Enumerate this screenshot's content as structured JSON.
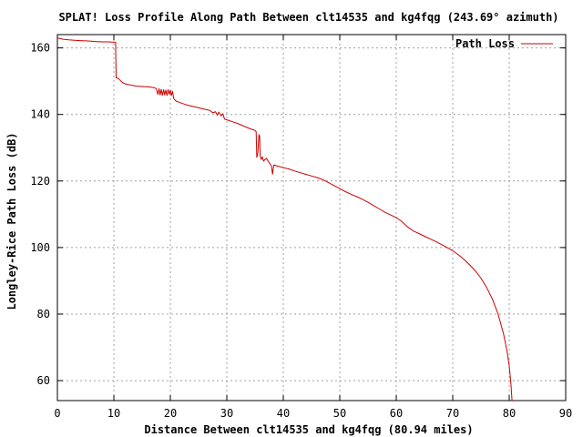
{
  "chart_data": {
    "type": "line",
    "title": "SPLAT! Loss Profile Along Path Between clt14535 and kg4fqg (243.69° azimuth)",
    "xlabel": "Distance Between clt14535 and kg4fqg (80.94 miles)",
    "ylabel": "Longley-Rice Path Loss (dB)",
    "xlim": [
      0,
      90
    ],
    "ylim": [
      54,
      164
    ],
    "xticks": [
      "0",
      "10",
      "20",
      "30",
      "40",
      "50",
      "60",
      "70",
      "80",
      "90"
    ],
    "yticks": [
      "60",
      "80",
      "100",
      "120",
      "140",
      "160"
    ],
    "grid": true,
    "legend": "top-right",
    "series": [
      {
        "name": "Path Loss",
        "color": "#cc0000",
        "points": [
          [
            0,
            163.0
          ],
          [
            0.5,
            162.8
          ],
          [
            1,
            162.6
          ],
          [
            2,
            162.4
          ],
          [
            3,
            162.3
          ],
          [
            4,
            162.2
          ],
          [
            5,
            162.1
          ],
          [
            6,
            162.0
          ],
          [
            7,
            161.9
          ],
          [
            8,
            161.8
          ],
          [
            9,
            161.8
          ],
          [
            10,
            161.7
          ],
          [
            10.3,
            161.7
          ],
          [
            10.4,
            151.0
          ],
          [
            10.8,
            150.8
          ],
          [
            11.5,
            149.6
          ],
          [
            12,
            149.2
          ],
          [
            13,
            148.8
          ],
          [
            14,
            148.5
          ],
          [
            15,
            148.4
          ],
          [
            16,
            148.3
          ],
          [
            17,
            148.1
          ],
          [
            17.5,
            147.8
          ],
          [
            17.8,
            146.0
          ],
          [
            18,
            147.8
          ],
          [
            18.2,
            145.8
          ],
          [
            18.4,
            147.6
          ],
          [
            18.6,
            145.7
          ],
          [
            18.8,
            147.5
          ],
          [
            19,
            145.8
          ],
          [
            19.2,
            147.4
          ],
          [
            19.4,
            145.6
          ],
          [
            19.6,
            147.5
          ],
          [
            19.8,
            146.0
          ],
          [
            20,
            147.3
          ],
          [
            20.2,
            145.8
          ],
          [
            20.4,
            146.8
          ],
          [
            20.6,
            144.8
          ],
          [
            21,
            144.0
          ],
          [
            22,
            143.4
          ],
          [
            23,
            142.8
          ],
          [
            24,
            142.4
          ],
          [
            25,
            142.0
          ],
          [
            26,
            141.6
          ],
          [
            27,
            141.2
          ],
          [
            27.5,
            140.5
          ],
          [
            28,
            140.8
          ],
          [
            28.3,
            139.8
          ],
          [
            28.6,
            140.7
          ],
          [
            29,
            139.6
          ],
          [
            29.3,
            140.2
          ],
          [
            29.6,
            138.6
          ],
          [
            30,
            138.4
          ],
          [
            31,
            137.8
          ],
          [
            32,
            137.2
          ],
          [
            33,
            136.5
          ],
          [
            34,
            135.8
          ],
          [
            35,
            135.2
          ],
          [
            35.2,
            134.8
          ],
          [
            35.3,
            127.0
          ],
          [
            35.5,
            128.5
          ],
          [
            35.7,
            134.0
          ],
          [
            35.8,
            133.5
          ],
          [
            35.9,
            127.5
          ],
          [
            36.1,
            126.5
          ],
          [
            36.3,
            127.2
          ],
          [
            36.5,
            126.0
          ],
          [
            37,
            126.8
          ],
          [
            37.5,
            125.5
          ],
          [
            37.9,
            124.5
          ],
          [
            38.1,
            122.0
          ],
          [
            38.3,
            124.8
          ],
          [
            39,
            124.5
          ],
          [
            40,
            124.0
          ],
          [
            41,
            123.6
          ],
          [
            42,
            123.0
          ],
          [
            43,
            122.5
          ],
          [
            44,
            122.0
          ],
          [
            45,
            121.5
          ],
          [
            46,
            121.0
          ],
          [
            47,
            120.4
          ],
          [
            48,
            119.5
          ],
          [
            49,
            118.6
          ],
          [
            50,
            117.7
          ],
          [
            51,
            116.8
          ],
          [
            52,
            116.0
          ],
          [
            53,
            115.3
          ],
          [
            54,
            114.5
          ],
          [
            55,
            113.6
          ],
          [
            56,
            112.6
          ],
          [
            57,
            111.6
          ],
          [
            58,
            110.6
          ],
          [
            59,
            109.8
          ],
          [
            60,
            109.0
          ],
          [
            61,
            107.8
          ],
          [
            62,
            106.2
          ],
          [
            63,
            105.0
          ],
          [
            64,
            104.2
          ],
          [
            65,
            103.4
          ],
          [
            66,
            102.6
          ],
          [
            67,
            101.8
          ],
          [
            68,
            100.9
          ],
          [
            69,
            100.0
          ],
          [
            70,
            99.0
          ],
          [
            71,
            97.8
          ],
          [
            72,
            96.4
          ],
          [
            73,
            94.8
          ],
          [
            74,
            93.0
          ],
          [
            75,
            90.8
          ],
          [
            76,
            88.0
          ],
          [
            77,
            84.6
          ],
          [
            78,
            80.2
          ],
          [
            79,
            74.0
          ],
          [
            79.6,
            69.0
          ],
          [
            80,
            64.5
          ],
          [
            80.3,
            59.0
          ],
          [
            80.5,
            54.0
          ]
        ]
      }
    ]
  }
}
